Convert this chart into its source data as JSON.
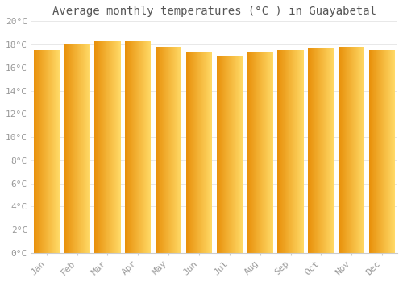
{
  "title": "Average monthly temperatures (°C ) in Guayabetal",
  "months": [
    "Jan",
    "Feb",
    "Mar",
    "Apr",
    "May",
    "Jun",
    "Jul",
    "Aug",
    "Sep",
    "Oct",
    "Nov",
    "Dec"
  ],
  "temperatures": [
    17.5,
    18.0,
    18.3,
    18.3,
    17.8,
    17.3,
    17.0,
    17.3,
    17.5,
    17.7,
    17.8,
    17.5
  ],
  "ylim": [
    0,
    20
  ],
  "yticks": [
    0,
    2,
    4,
    6,
    8,
    10,
    12,
    14,
    16,
    18,
    20
  ],
  "bar_color_left": "#F5A623",
  "bar_color_right": "#FFD966",
  "bar_color_mid": "#FFC125",
  "background_color": "#FFFFFF",
  "grid_color": "#E8E8E8",
  "title_fontsize": 10,
  "tick_fontsize": 8,
  "title_color": "#555555",
  "tick_color": "#999999",
  "bar_width": 0.85
}
